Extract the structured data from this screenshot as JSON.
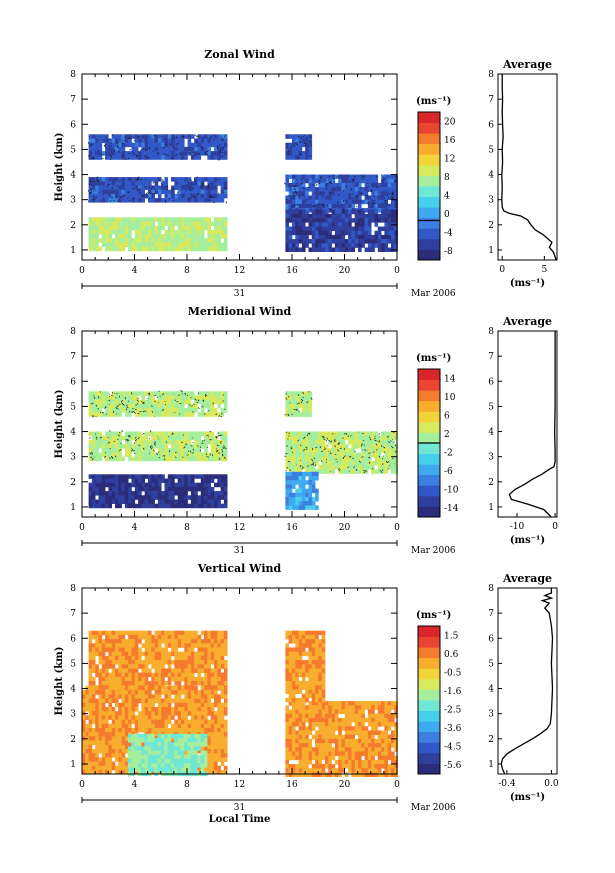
{
  "chart_data": [
    {
      "type": "heatmap",
      "title": "Zonal Wind",
      "ylabel": "Height (km)",
      "x_ticks": [
        "0",
        "4",
        "8",
        "12",
        "16",
        "20",
        "0"
      ],
      "xlim": [
        0,
        24
      ],
      "ylim": [
        0.6,
        8
      ],
      "y_ticks": [
        "1",
        "2",
        "3",
        "4",
        "5",
        "6",
        "7",
        "8"
      ],
      "date_day": "31",
      "date_suffix": "Mar 2006",
      "colorbar": {
        "unit": "(ms⁻¹)",
        "min": -8,
        "max": 22,
        "ticks": [
          "20",
          "16",
          "12",
          "8",
          "4",
          "0",
          "-4",
          "-8"
        ],
        "mark": 0
      },
      "bands": [
        {
          "x": [
            0.5,
            11
          ],
          "y": [
            1.0,
            2.3
          ],
          "value": 9
        },
        {
          "x": [
            0.5,
            11
          ],
          "y": [
            2.9,
            3.9
          ],
          "value": -3
        },
        {
          "x": [
            0.5,
            11
          ],
          "y": [
            4.6,
            5.6
          ],
          "value": -3
        },
        {
          "x": [
            15.5,
            23.9
          ],
          "y": [
            2.6,
            4.0
          ],
          "value": -3
        },
        {
          "x": [
            15.5,
            23.9
          ],
          "y": [
            1.0,
            2.6
          ],
          "value": -5
        },
        {
          "x": [
            15.5,
            17.5
          ],
          "y": [
            4.6,
            5.6
          ],
          "value": -3
        }
      ],
      "profile": {
        "title": "Average",
        "xlabel": "(ms⁻¹)",
        "x_ticks": [
          "0",
          "5"
        ],
        "xlim": [
          -0.5,
          6.5
        ],
        "heights": [
          0.6,
          0.9,
          1.1,
          1.3,
          1.6,
          1.8,
          2.0,
          2.2,
          2.35,
          2.45,
          2.55,
          2.7,
          3.0,
          3.5,
          4.0,
          4.5,
          5.0,
          5.5,
          6.0,
          6.5,
          7.0,
          7.5,
          8.0
        ],
        "values": [
          6.4,
          6.1,
          5.6,
          5.9,
          4.9,
          3.9,
          3.4,
          3.0,
          2.2,
          0.9,
          0.2,
          0.0,
          -0.05,
          0.0,
          -0.05,
          0.05,
          0.0,
          0.1,
          0.05,
          0.0,
          0.05,
          0.0,
          0.0
        ]
      }
    },
    {
      "type": "heatmap",
      "title": "Meridional Wind",
      "ylabel": "Height (km)",
      "x_ticks": [
        "0",
        "4",
        "8",
        "12",
        "16",
        "20",
        "0"
      ],
      "xlim": [
        0,
        24
      ],
      "ylim": [
        0.6,
        8
      ],
      "y_ticks": [
        "1",
        "2",
        "3",
        "4",
        "5",
        "6",
        "7",
        "8"
      ],
      "date_day": "31",
      "date_suffix": "Mar 2006",
      "colorbar": {
        "unit": "(ms⁻¹)",
        "min": -16,
        "max": 16,
        "ticks": [
          "14",
          "10",
          "6",
          "2",
          "-2",
          "-6",
          "-10",
          "-14"
        ],
        "mark": 0
      },
      "bands": [
        {
          "x": [
            0.5,
            11
          ],
          "y": [
            1.0,
            2.3
          ],
          "value": -14
        },
        {
          "x": [
            0.5,
            11
          ],
          "y": [
            2.9,
            4.0
          ],
          "value": 2
        },
        {
          "x": [
            0.5,
            11
          ],
          "y": [
            4.6,
            5.6
          ],
          "value": 2
        },
        {
          "x": [
            15.5,
            23.9
          ],
          "y": [
            2.4,
            4.0
          ],
          "value": 2
        },
        {
          "x": [
            15.5,
            18
          ],
          "y": [
            1.0,
            2.4
          ],
          "value": -6
        },
        {
          "x": [
            15.5,
            17.5
          ],
          "y": [
            4.6,
            5.6
          ],
          "value": 2
        }
      ],
      "profile": {
        "title": "Average",
        "xlabel": "(ms⁻¹)",
        "x_ticks": [
          "-10",
          "0"
        ],
        "xlim": [
          -15,
          0.5
        ],
        "heights": [
          0.6,
          0.9,
          1.1,
          1.3,
          1.5,
          1.7,
          1.9,
          2.1,
          2.3,
          2.5,
          2.6,
          2.8,
          3.2,
          4.0,
          5.0,
          6.0,
          7.0,
          8.0
        ],
        "values": [
          -1,
          -3,
          -7,
          -11.5,
          -12,
          -10.5,
          -8,
          -6,
          -3.5,
          -1.5,
          -0.3,
          0.0,
          0.0,
          -0.1,
          0.0,
          0.0,
          0.0,
          0.0
        ]
      }
    },
    {
      "type": "heatmap",
      "title": "Vertical Wind",
      "ylabel": "Height (km)",
      "xlabel": "Local Time",
      "x_ticks": [
        "0",
        "4",
        "8",
        "12",
        "16",
        "20",
        "0"
      ],
      "xlim": [
        0,
        24
      ],
      "ylim": [
        0.6,
        8
      ],
      "y_ticks": [
        "1",
        "2",
        "3",
        "4",
        "5",
        "6",
        "7",
        "8"
      ],
      "date_day": "31",
      "date_suffix": "Mar 2006",
      "colorbar": {
        "unit": "(ms⁻¹)",
        "min": -6.0,
        "max": 2.0,
        "ticks": [
          "1.5",
          "0.6",
          "-0.5",
          "-1.6",
          "-2.5",
          "-3.6",
          "-4.5",
          "-5.6"
        ],
        "mark": null
      },
      "bands": [
        {
          "x": [
            0,
            11
          ],
          "y": [
            0.6,
            4.1
          ],
          "value": 0.2
        },
        {
          "x": [
            0.5,
            11
          ],
          "y": [
            4.1,
            6.3
          ],
          "value": 0.2
        },
        {
          "x": [
            15.5,
            23.9
          ],
          "y": [
            0.6,
            3.5
          ],
          "value": 0.2
        },
        {
          "x": [
            15.5,
            18.5
          ],
          "y": [
            3.5,
            6.3
          ],
          "value": 0.2
        },
        {
          "x": [
            3.5,
            9.5
          ],
          "y": [
            0.6,
            2.2
          ],
          "value": -2.0
        }
      ],
      "profile": {
        "title": "Average",
        "xlabel": "(ms⁻¹)",
        "x_ticks": [
          "-0.4",
          "0.0"
        ],
        "xlim": [
          -0.48,
          0.05
        ],
        "heights": [
          0.6,
          0.8,
          1.0,
          1.2,
          1.4,
          1.6,
          1.8,
          2.0,
          2.2,
          2.4,
          2.6,
          3.0,
          4.0,
          5.0,
          6.0,
          6.5,
          7.0,
          7.2,
          7.4,
          7.5,
          7.6,
          7.7,
          7.8,
          8.0
        ],
        "values": [
          -0.42,
          -0.44,
          -0.45,
          -0.44,
          -0.4,
          -0.33,
          -0.25,
          -0.17,
          -0.1,
          -0.04,
          -0.01,
          0.0,
          0.01,
          0.0,
          0.01,
          0.0,
          -0.02,
          -0.06,
          -0.02,
          -0.08,
          0.0,
          -0.06,
          0.0,
          0.0
        ]
      }
    }
  ]
}
